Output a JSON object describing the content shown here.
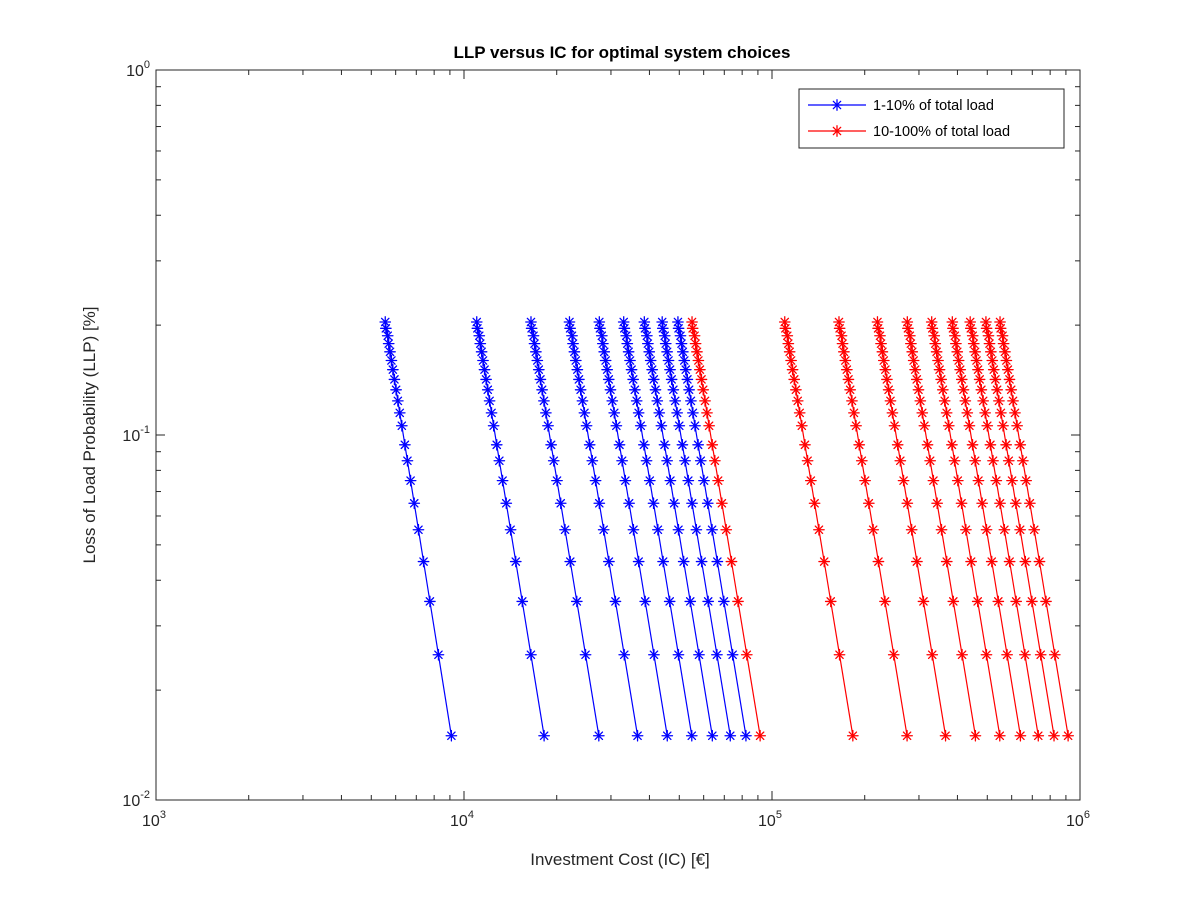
{
  "chart_data": {
    "type": "line",
    "title": "LLP versus IC for optimal system choices",
    "xlabel": "Investment Cost (IC) [€]",
    "ylabel": "Loss of Load Probability (LLP) [%]",
    "x_scale": "log",
    "y_scale": "log",
    "xlim": [
      1000,
      1000000
    ],
    "ylim": [
      0.01,
      1
    ],
    "x_ticks": [
      {
        "base": "10",
        "exp": "3",
        "value": 1000
      },
      {
        "base": "10",
        "exp": "4",
        "value": 10000
      },
      {
        "base": "10",
        "exp": "5",
        "value": 100000
      },
      {
        "base": "10",
        "exp": "6",
        "value": 1000000
      }
    ],
    "y_ticks": [
      {
        "base": "10",
        "exp": "-2",
        "value": 0.01
      },
      {
        "base": "10",
        "exp": "-1",
        "value": 0.1
      },
      {
        "base": "10",
        "exp": "0",
        "value": 1
      }
    ],
    "grid": false,
    "legend_position": "top-right",
    "llp_levels": [
      0.204,
      0.196,
      0.187,
      0.178,
      0.169,
      0.16,
      0.151,
      0.142,
      0.133,
      0.124,
      0.115,
      0.106,
      0.094,
      0.085,
      0.075,
      0.065,
      0.055,
      0.045,
      0.035,
      0.025,
      0.015
    ],
    "series": [
      {
        "name": "1-10% of total load",
        "color": "#0000ff",
        "marker": "asterisk",
        "curves_ic_min": [
          5550,
          11000,
          16500,
          22000,
          27500,
          33000,
          38500,
          44000,
          49500
        ],
        "curves_ic_max": [
          9100,
          18200,
          27400,
          36600,
          45700,
          54900,
          64000,
          73200,
          82300
        ]
      },
      {
        "name": "10-100% of total load",
        "color": "#ff0000",
        "marker": "asterisk",
        "curves_ic_min": [
          55000,
          110000,
          165000,
          220000,
          275000,
          330000,
          385000,
          440000,
          495000,
          550000
        ],
        "curves_ic_max": [
          91500,
          183000,
          274500,
          366000,
          457500,
          549000,
          640500,
          732000,
          823500,
          915000
        ]
      }
    ]
  }
}
